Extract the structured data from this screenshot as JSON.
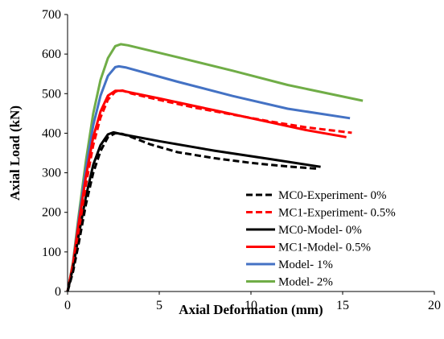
{
  "chart_data": {
    "type": "line",
    "title": "",
    "xlabel": "Axial Deformation (mm)",
    "ylabel": "Axial Load (kN)",
    "xlim": [
      0,
      20
    ],
    "ylim": [
      0,
      700
    ],
    "xticks": [
      "0",
      "5",
      "10",
      "15",
      "20"
    ],
    "yticks": [
      "0",
      "100",
      "200",
      "300",
      "400",
      "500",
      "600",
      "700"
    ],
    "grid": false,
    "legend_position": "bottom-right",
    "series": [
      {
        "name": "MC0-Experiment- 0%",
        "color": "#000000",
        "dash": true,
        "points": [
          [
            0,
            0
          ],
          [
            0.3,
            50
          ],
          [
            0.6,
            120
          ],
          [
            1.0,
            220
          ],
          [
            1.4,
            300
          ],
          [
            1.8,
            355
          ],
          [
            2.2,
            390
          ],
          [
            2.6,
            400
          ],
          [
            3.0,
            398
          ],
          [
            3.5,
            390
          ],
          [
            4.5,
            372
          ],
          [
            6,
            352
          ],
          [
            8,
            337
          ],
          [
            10,
            325
          ],
          [
            12,
            316
          ],
          [
            13.7,
            310
          ]
        ]
      },
      {
        "name": "MC1-Experiment- 0.5%",
        "color": "#ff0000",
        "dash": true,
        "points": [
          [
            0,
            0
          ],
          [
            0.3,
            60
          ],
          [
            0.6,
            150
          ],
          [
            1.0,
            270
          ],
          [
            1.4,
            370
          ],
          [
            1.8,
            440
          ],
          [
            2.2,
            485
          ],
          [
            2.6,
            505
          ],
          [
            3.0,
            508
          ],
          [
            3.5,
            500
          ],
          [
            5,
            484
          ],
          [
            7,
            464
          ],
          [
            9,
            447
          ],
          [
            11,
            430
          ],
          [
            13,
            415
          ],
          [
            15.5,
            401
          ]
        ]
      },
      {
        "name": "MC0-Model- 0%",
        "color": "#000000",
        "dash": false,
        "points": [
          [
            0,
            0
          ],
          [
            0.3,
            60
          ],
          [
            0.6,
            140
          ],
          [
            1.0,
            240
          ],
          [
            1.4,
            320
          ],
          [
            1.8,
            370
          ],
          [
            2.2,
            397
          ],
          [
            2.5,
            402
          ],
          [
            3.0,
            397
          ],
          [
            5,
            380
          ],
          [
            8,
            356
          ],
          [
            11,
            335
          ],
          [
            13.8,
            315
          ]
        ]
      },
      {
        "name": "MC1-Model- 0.5%",
        "color": "#ff0000",
        "dash": false,
        "points": [
          [
            0,
            0
          ],
          [
            0.3,
            70
          ],
          [
            0.6,
            170
          ],
          [
            1.0,
            290
          ],
          [
            1.4,
            390
          ],
          [
            1.8,
            455
          ],
          [
            2.2,
            495
          ],
          [
            2.6,
            507
          ],
          [
            3.0,
            507
          ],
          [
            5,
            488
          ],
          [
            8,
            458
          ],
          [
            11,
            428
          ],
          [
            13,
            408
          ],
          [
            15.2,
            390
          ]
        ]
      },
      {
        "name": "Model- 1%",
        "color": "#4472c4",
        "dash": false,
        "points": [
          [
            0,
            0
          ],
          [
            0.3,
            70
          ],
          [
            0.6,
            180
          ],
          [
            1.0,
            310
          ],
          [
            1.4,
            420
          ],
          [
            1.8,
            495
          ],
          [
            2.2,
            545
          ],
          [
            2.6,
            567
          ],
          [
            2.8,
            569
          ],
          [
            3.2,
            566
          ],
          [
            6,
            530
          ],
          [
            9,
            494
          ],
          [
            12,
            462
          ],
          [
            15.4,
            438
          ]
        ]
      },
      {
        "name": "Model- 2%",
        "color": "#70ad47",
        "dash": false,
        "points": [
          [
            0,
            0
          ],
          [
            0.3,
            75
          ],
          [
            0.6,
            190
          ],
          [
            1.0,
            330
          ],
          [
            1.4,
            450
          ],
          [
            1.8,
            535
          ],
          [
            2.2,
            590
          ],
          [
            2.6,
            620
          ],
          [
            2.9,
            625
          ],
          [
            3.3,
            622
          ],
          [
            6,
            592
          ],
          [
            9,
            558
          ],
          [
            12,
            522
          ],
          [
            16.1,
            482
          ]
        ]
      }
    ]
  }
}
